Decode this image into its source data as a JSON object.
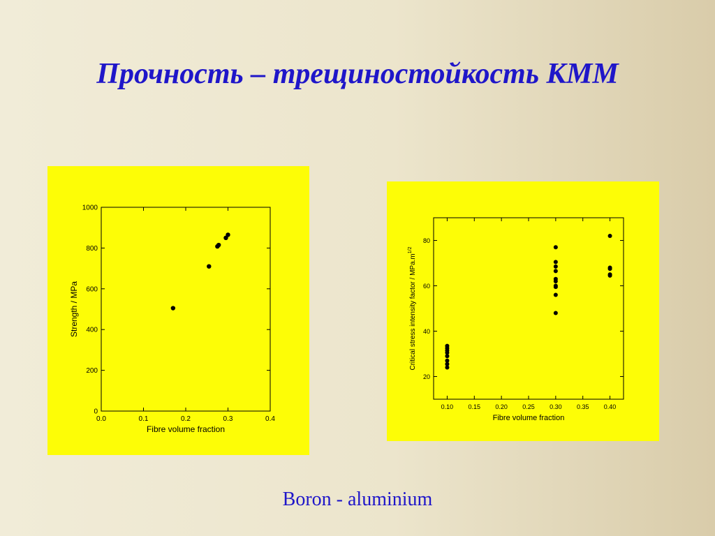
{
  "title": "Прочность – трещиностойкость КММ",
  "caption": "Boron - aluminium",
  "colors": {
    "title": "#1f16c9",
    "panel": "#fdfd06",
    "marker": "#000000"
  },
  "chart_data": [
    {
      "type": "scatter",
      "xlabel": "Fibre volume fraction",
      "ylabel": "Strength / MPa",
      "xlim": [
        0.0,
        0.4
      ],
      "ylim": [
        0,
        1000
      ],
      "x_ticks": [
        "0.0",
        "0.1",
        "0.2",
        "0.3",
        "0.4"
      ],
      "y_ticks": [
        "0",
        "200",
        "400",
        "600",
        "800",
        "1000"
      ],
      "grid": false,
      "points": [
        {
          "x": 0.17,
          "y": 505
        },
        {
          "x": 0.255,
          "y": 710
        },
        {
          "x": 0.275,
          "y": 808
        },
        {
          "x": 0.278,
          "y": 815
        },
        {
          "x": 0.295,
          "y": 850
        },
        {
          "x": 0.3,
          "y": 865
        }
      ]
    },
    {
      "type": "scatter",
      "xlabel": "Fibre volume fraction",
      "ylabel": "Critical stress intensity factor / MPa.m",
      "ylabel_superscript": "1/2",
      "xlim": [
        0.075,
        0.425
      ],
      "ylim": [
        10,
        90
      ],
      "x_ticks": [
        "0.10",
        "0.15",
        "0.20",
        "0.25",
        "0.30",
        "0.35",
        "0.40"
      ],
      "y_ticks": [
        "20",
        "40",
        "60",
        "80"
      ],
      "grid": false,
      "points": [
        {
          "x": 0.1,
          "y": 33.5
        },
        {
          "x": 0.1,
          "y": 32.5
        },
        {
          "x": 0.1,
          "y": 31.5
        },
        {
          "x": 0.1,
          "y": 30.5
        },
        {
          "x": 0.1,
          "y": 29
        },
        {
          "x": 0.1,
          "y": 27
        },
        {
          "x": 0.1,
          "y": 25.5
        },
        {
          "x": 0.1,
          "y": 24
        },
        {
          "x": 0.3,
          "y": 77
        },
        {
          "x": 0.3,
          "y": 70.5
        },
        {
          "x": 0.3,
          "y": 68.5
        },
        {
          "x": 0.3,
          "y": 66.5
        },
        {
          "x": 0.3,
          "y": 63
        },
        {
          "x": 0.3,
          "y": 62
        },
        {
          "x": 0.3,
          "y": 60
        },
        {
          "x": 0.3,
          "y": 59.5
        },
        {
          "x": 0.3,
          "y": 56
        },
        {
          "x": 0.3,
          "y": 48
        },
        {
          "x": 0.4,
          "y": 82
        },
        {
          "x": 0.4,
          "y": 68
        },
        {
          "x": 0.4,
          "y": 67.5
        },
        {
          "x": 0.4,
          "y": 65
        },
        {
          "x": 0.4,
          "y": 64.5
        }
      ]
    }
  ]
}
